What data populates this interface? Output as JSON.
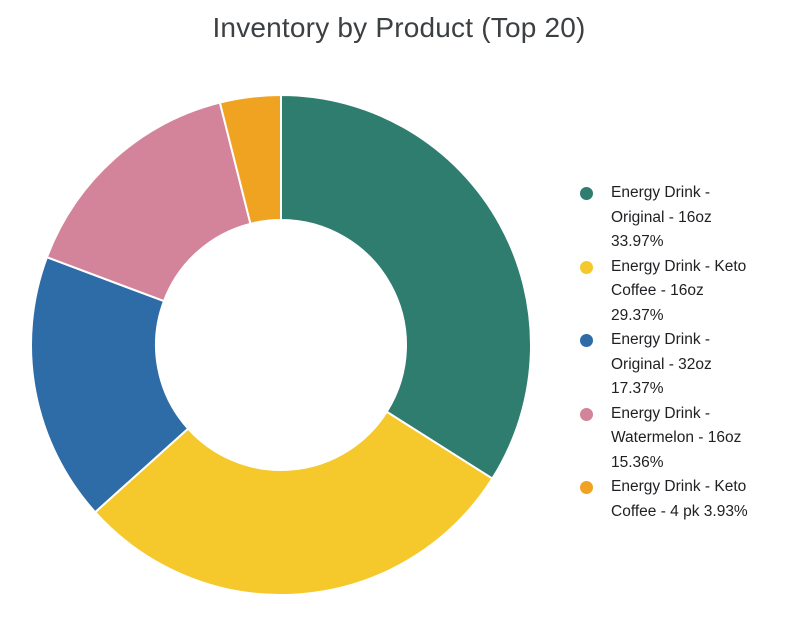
{
  "chart_data": {
    "type": "pie",
    "variant": "donut",
    "title": "Inventory by Product (Top 20)",
    "start_angle_deg": 0,
    "direction": "clockwise",
    "inner_radius_ratio": 0.5,
    "legend_position": "right",
    "slice_border_color": "#ffffff",
    "background_color": "#ffffff",
    "title_color": "#3c4043",
    "legend_text_color": "#202124",
    "slices": [
      {
        "name": "Energy Drink - Original - 16oz",
        "value_pct": 33.97,
        "pct_display": "33.97%",
        "legend_label": "Energy Drink - Original - 16oz 33.97%",
        "color": "#2f7d6e"
      },
      {
        "name": "Energy Drink - Keto Coffee - 16oz",
        "value_pct": 29.37,
        "pct_display": "29.37%",
        "legend_label": "Energy Drink - Keto Coffee - 16oz 29.37%",
        "color": "#f5c82b"
      },
      {
        "name": "Energy Drink - Original - 32oz",
        "value_pct": 17.37,
        "pct_display": "17.37%",
        "legend_label": "Energy Drink - Original - 32oz 17.37%",
        "color": "#2e6ca7"
      },
      {
        "name": "Energy Drink - Watermelon - 16oz",
        "value_pct": 15.36,
        "pct_display": "15.36%",
        "legend_label": "Energy Drink - Watermelon - 16oz 15.36%",
        "color": "#d3849b"
      },
      {
        "name": "Energy Drink - Keto Coffee - 4 pk",
        "value_pct": 3.93,
        "pct_display": "3.93%",
        "legend_label": "Energy Drink - Keto Coffee - 4 pk 3.93%",
        "color": "#f0a221"
      }
    ]
  }
}
